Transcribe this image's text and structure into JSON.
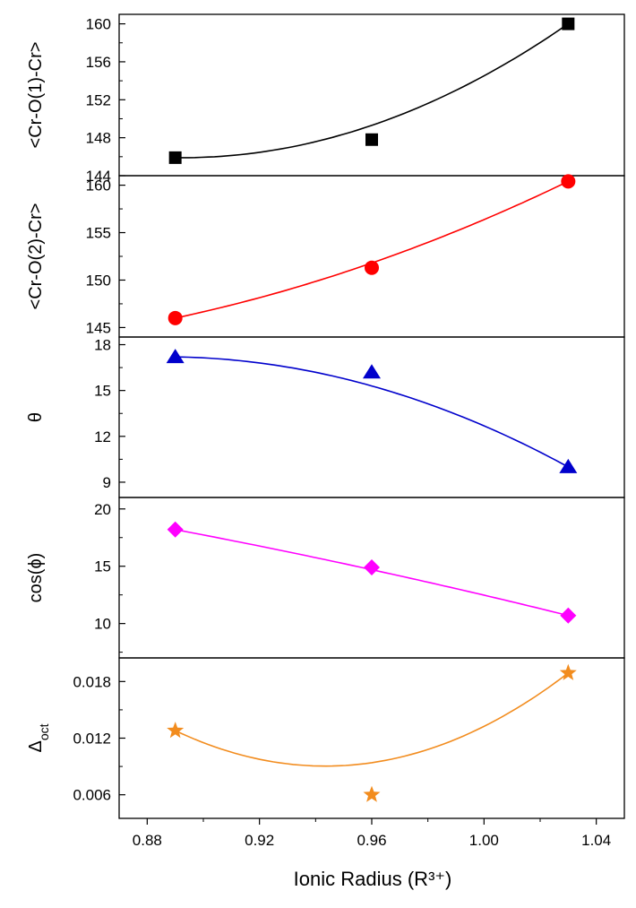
{
  "chart_data": {
    "type": "scatter",
    "layout": "stacked panels sharing x axis",
    "xlabel": "Ionic Radius (R³⁺)",
    "xlim": [
      0.87,
      1.05
    ],
    "xticks": [
      0.88,
      0.92,
      0.96,
      1.0,
      1.04
    ],
    "xtick_labels": [
      "0.88",
      "0.92",
      "0.96",
      "1.00",
      "1.04"
    ],
    "x": [
      0.89,
      0.96,
      1.03
    ],
    "grid": false,
    "panels": [
      {
        "id": "cro1cr",
        "ylabel": "<Cr-O(1)-Cr>",
        "ylim": [
          144,
          161
        ],
        "yticks": [
          144,
          148,
          152,
          156,
          160
        ],
        "ytick_labels": [
          "144",
          "148",
          "152",
          "156",
          "160"
        ],
        "values": [
          145.9,
          147.8,
          160.0
        ],
        "fit": [
          145.9,
          149.3,
          160.0
        ],
        "marker": "square",
        "color": "#000000"
      },
      {
        "id": "cro2cr",
        "ylabel": "<Cr-O(2)-Cr>",
        "ylim": [
          144,
          161
        ],
        "yticks": [
          145,
          150,
          155,
          160
        ],
        "ytick_labels": [
          "145",
          "150",
          "155",
          "160"
        ],
        "values": [
          146.0,
          151.3,
          160.4
        ],
        "fit": [
          146.0,
          151.8,
          160.4
        ],
        "marker": "circle",
        "color": "#ff0000"
      },
      {
        "id": "theta",
        "ylabel": "θ",
        "ylim": [
          8,
          18.5
        ],
        "yticks": [
          9,
          12,
          15,
          18
        ],
        "ytick_labels": [
          "9",
          "12",
          "15",
          "18"
        ],
        "values": [
          17.2,
          16.2,
          10.0
        ],
        "fit": [
          17.2,
          15.3,
          10.0
        ],
        "marker": "triangle",
        "color": "#0000cc"
      },
      {
        "id": "cosphi",
        "ylabel": "cos(ϕ)",
        "ylim": [
          7,
          21
        ],
        "yticks": [
          10,
          15,
          20
        ],
        "ytick_labels": [
          "10",
          "15",
          "20"
        ],
        "values": [
          18.2,
          14.9,
          10.7
        ],
        "fit": [
          18.2,
          14.7,
          10.7
        ],
        "marker": "diamond",
        "color": "#ff00ff"
      },
      {
        "id": "delta",
        "ylabel": "Δ",
        "ylabel_sub": "oct",
        "ylim": [
          0.0035,
          0.0205
        ],
        "yticks": [
          0.006,
          0.012,
          0.018
        ],
        "ytick_labels": [
          "0.006",
          "0.012",
          "0.018"
        ],
        "values": [
          0.0128,
          0.006,
          0.0189
        ],
        "fit": [
          0.0128,
          0.0094,
          0.0189
        ],
        "marker": "star",
        "color": "#f28c1e"
      }
    ]
  }
}
